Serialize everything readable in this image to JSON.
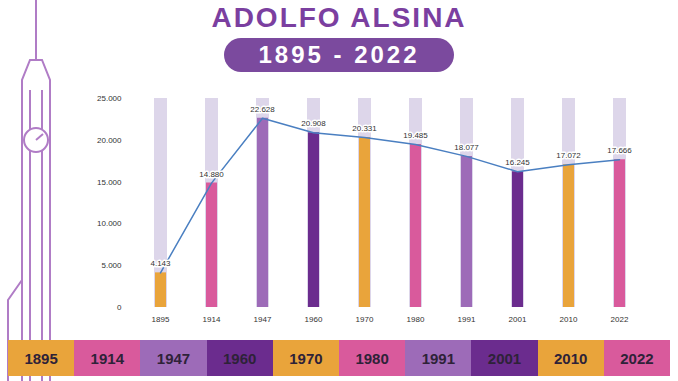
{
  "chart_data": {
    "type": "bar",
    "title": "ADOLFO ALSINA",
    "subtitle": "1895 - 2022",
    "categories": [
      "1895",
      "1914",
      "1947",
      "1960",
      "1970",
      "1980",
      "1991",
      "2001",
      "2010",
      "2022"
    ],
    "series": [
      {
        "type": "bar",
        "colors": [
          "#e9a43b",
          "#d95a9c",
          "#9d6bb8",
          "#6b2c8e",
          "#e9a43b",
          "#d95a9c",
          "#9d6bb8",
          "#6b2c8e",
          "#e9a43b",
          "#d95a9c"
        ],
        "values": [
          4143,
          14880,
          22628,
          20908,
          20331,
          19485,
          18077,
          16245,
          17072,
          17666
        ]
      },
      {
        "type": "line",
        "color": "#4a7fc1",
        "values": [
          4143,
          14880,
          22628,
          20908,
          20331,
          19485,
          18077,
          16245,
          17072,
          17666
        ],
        "value_labels": [
          "4.143",
          "14.880",
          "22.628",
          "20.908",
          "20.331",
          "19.485",
          "18.077",
          "16.245",
          "17.072",
          "17.666"
        ]
      }
    ],
    "data_labels": true,
    "ylim": [
      0,
      25000
    ],
    "yticks": [
      0,
      {
        "value": 5000,
        "label": "5.000"
      },
      {
        "value": 10000,
        "label": "10.000"
      },
      {
        "value": 15000,
        "label": "15.000"
      },
      {
        "value": 20000,
        "label": "20.000"
      },
      {
        "value": 25000,
        "label": "25.000"
      }
    ],
    "grid": false
  }
}
